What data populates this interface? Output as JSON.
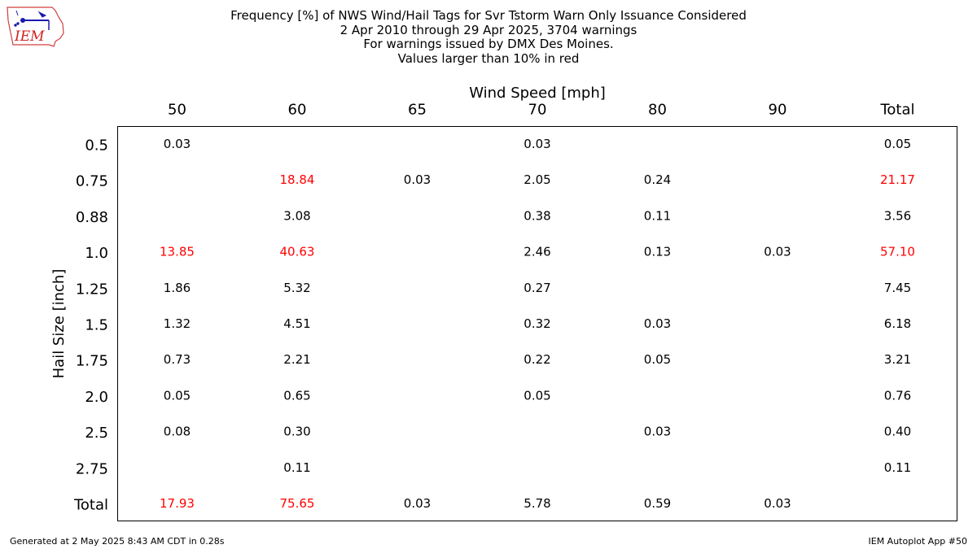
{
  "header": {
    "title_lines": [
      "Frequency [%] of NWS Wind/Hail Tags for Svr Tstorm Warn Only Issuance Considered",
      "2 Apr 2010 through 29 Apr 2025, 3704 warnings",
      "For warnings issued by DMX Des Moines.",
      "Values larger than 10% in red"
    ]
  },
  "logo": {
    "text": "IEM"
  },
  "footer": {
    "left": "Generated at 2 May 2025 8:43 AM CDT in 0.28s",
    "right": "IEM Autoplot App #50"
  },
  "colors": {
    "highlight": "#ff0000",
    "normal": "#000000"
  },
  "chart_data": {
    "type": "table",
    "xlabel": "Wind Speed [mph]",
    "ylabel": "Hail Size [inch]",
    "columns": [
      "50",
      "60",
      "65",
      "70",
      "80",
      "90",
      "Total"
    ],
    "rows": [
      "0.5",
      "0.75",
      "0.88",
      "1.0",
      "1.25",
      "1.5",
      "1.75",
      "2.0",
      "2.5",
      "2.75",
      "Total"
    ],
    "cells": [
      [
        "0.03",
        "",
        "",
        "0.03",
        "",
        "",
        "0.05"
      ],
      [
        "",
        "18.84",
        "0.03",
        "2.05",
        "0.24",
        "",
        "21.17"
      ],
      [
        "",
        "3.08",
        "",
        "0.38",
        "0.11",
        "",
        "3.56"
      ],
      [
        "13.85",
        "40.63",
        "",
        "2.46",
        "0.13",
        "0.03",
        "57.10"
      ],
      [
        "1.86",
        "5.32",
        "",
        "0.27",
        "",
        "",
        "7.45"
      ],
      [
        "1.32",
        "4.51",
        "",
        "0.32",
        "0.03",
        "",
        "6.18"
      ],
      [
        "0.73",
        "2.21",
        "",
        "0.22",
        "0.05",
        "",
        "3.21"
      ],
      [
        "0.05",
        "0.65",
        "",
        "0.05",
        "",
        "",
        "0.76"
      ],
      [
        "0.08",
        "0.30",
        "",
        "",
        "0.03",
        "",
        "0.40"
      ],
      [
        "",
        "0.11",
        "",
        "",
        "",
        "",
        "0.11"
      ],
      [
        "17.93",
        "75.65",
        "0.03",
        "5.78",
        "0.59",
        "0.03",
        ""
      ]
    ],
    "highlight_threshold": 10
  }
}
